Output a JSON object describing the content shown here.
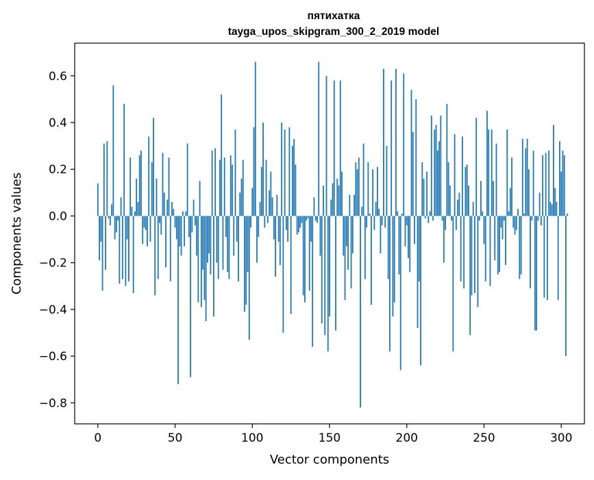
{
  "chart_data": {
    "type": "bar",
    "title": "пятихатка",
    "subtitle": "tayga_upos_skipgram_300_2_2019 model",
    "xlabel": "Vector components",
    "ylabel": "Components values",
    "xlim": [
      -15,
      315
    ],
    "ylim": [
      -0.89,
      0.74
    ],
    "xticks": [
      0,
      50,
      100,
      150,
      200,
      250,
      300
    ],
    "yticks": [
      -0.8,
      -0.6,
      -0.4,
      -0.2,
      0.0,
      0.2,
      0.4,
      0.6
    ],
    "ytick_labels": [
      "−0.8",
      "−0.6",
      "−0.4",
      "−0.2",
      "0.0",
      "0.2",
      "0.4",
      "0.6"
    ],
    "grid": false,
    "bar_color": "#1f77b4",
    "values": [
      0.14,
      -0.19,
      -0.11,
      -0.32,
      0.31,
      -0.23,
      0.32,
      -0.01,
      -0.04,
      0.05,
      0.56,
      -0.1,
      -0.07,
      -0.02,
      -0.29,
      0.08,
      -0.27,
      0.48,
      -0.3,
      -0.1,
      -0.28,
      0.25,
      0.04,
      -0.33,
      0.02,
      0.16,
      0.06,
      0.26,
      0.28,
      -0.12,
      -0.05,
      -0.06,
      -0.13,
      0.34,
      -0.11,
      0.23,
      0.42,
      -0.34,
      0.16,
      -0.27,
      -0.03,
      -0.08,
      0.27,
      0.1,
      -0.22,
      0.07,
      0.25,
      -0.28,
      0.06,
      0.03,
      -0.05,
      -0.1,
      -0.72,
      -0.13,
      -0.17,
      0.02,
      -0.13,
      0.02,
      0.31,
      -0.09,
      -0.69,
      -0.07,
      0.07,
      -0.04,
      -0.17,
      -0.37,
      0.15,
      -0.39,
      -0.23,
      -0.36,
      -0.45,
      -0.2,
      -0.16,
      -0.25,
      0.28,
      -0.43,
      0.29,
      -0.2,
      -0.27,
      0.24,
      0.52,
      -0.23,
      0.25,
      -0.09,
      -0.24,
      -0.27,
      0.26,
      0.22,
      -0.17,
      0.37,
      -0.11,
      -0.28,
      0.1,
      0.16,
      0.24,
      -0.41,
      -0.38,
      -0.24,
      -0.53,
      -0.05,
      0.12,
      0.38,
      0.66,
      -0.2,
      -0.09,
      0.06,
      0.21,
      0.4,
      -0.05,
      0.24,
      -0.03,
      0.11,
      0.19,
      0.08,
      -0.1,
      -0.26,
      0.09,
      -0.11,
      -0.21,
      0.4,
      -0.5,
      0.37,
      -0.06,
      -0.11,
      0.38,
      -0.42,
      0.3,
      0.33,
      0.22,
      -0.08,
      -0.07,
      -0.05,
      -0.03,
      -0.34,
      -0.37,
      -0.02,
      -0.01,
      -0.32,
      -0.11,
      -0.56,
      0.08,
      -0.02,
      -0.03,
      0.66,
      -0.17,
      -0.46,
      0.13,
      -0.51,
      0.6,
      -0.58,
      -0.43,
      0.07,
      0.14,
      0.58,
      -0.49,
      0.16,
      0.13,
      0.58,
      0.19,
      -0.17,
      -0.36,
      -0.13,
      -0.23,
      0.09,
      -0.31,
      -0.16,
      0.09,
      0.23,
      0.2,
      0.25,
      -0.82,
      0.04,
      0.31,
      -0.27,
      -0.05,
      0.23,
      0.01,
      -0.38,
      0.2,
      -0.06,
      0.06,
      0.21,
      0.03,
      -0.16,
      -0.04,
      0.63,
      -0.05,
      0.3,
      -0.27,
      -0.58,
      0.58,
      -0.43,
      -0.37,
      0.63,
      0.02,
      -0.25,
      -0.66,
      0.01,
      0.61,
      -0.13,
      -0.04,
      -0.18,
      -0.24,
      0.54,
      0.36,
      -0.12,
      0.5,
      -0.48,
      -0.28,
      -0.64,
      0.23,
      0.16,
      -0.01,
      0.19,
      -0.03,
      0.02,
      0.43,
      -0.02,
      0.37,
      0.39,
      0.28,
      0.32,
      0.43,
      -0.02,
      -0.2,
      -0.06,
      0.48,
      0.23,
      0.13,
      -0.02,
      -0.58,
      0.35,
      -0.06,
      0.07,
      0.1,
      -0.28,
      0.34,
      -0.31,
      0.21,
      0.22,
      0.13,
      -0.51,
      -0.34,
      0.06,
      -0.33,
      0.42,
      -0.39,
      -0.02,
      0.15,
      0.02,
      -0.12,
      -0.28,
      0.45,
      0.37,
      -0.3,
      0.37,
      0.15,
      -0.19,
      0.31,
      -0.25,
      -0.24,
      -0.05,
      -0.1,
      -0.02,
      -0.21,
      0.37,
      0.02,
      0.12,
      0.25,
      -0.05,
      -0.08,
      -0.06,
      0.03,
      -0.27,
      -0.25,
      0.33,
      0.01,
      0.29,
      0.33,
      0.2,
      -0.31,
      -0.02,
      0.28,
      -0.49,
      -0.49,
      -0.02,
      0.1,
      -0.04,
      0.26,
      -0.35,
      0.27,
      -0.36,
      0.28,
      0.06,
      0.05,
      0.39,
      0.12,
      0.06,
      -0.36,
      0.32,
      0.19,
      0.28,
      0.26,
      -0.6,
      0.01
    ]
  }
}
